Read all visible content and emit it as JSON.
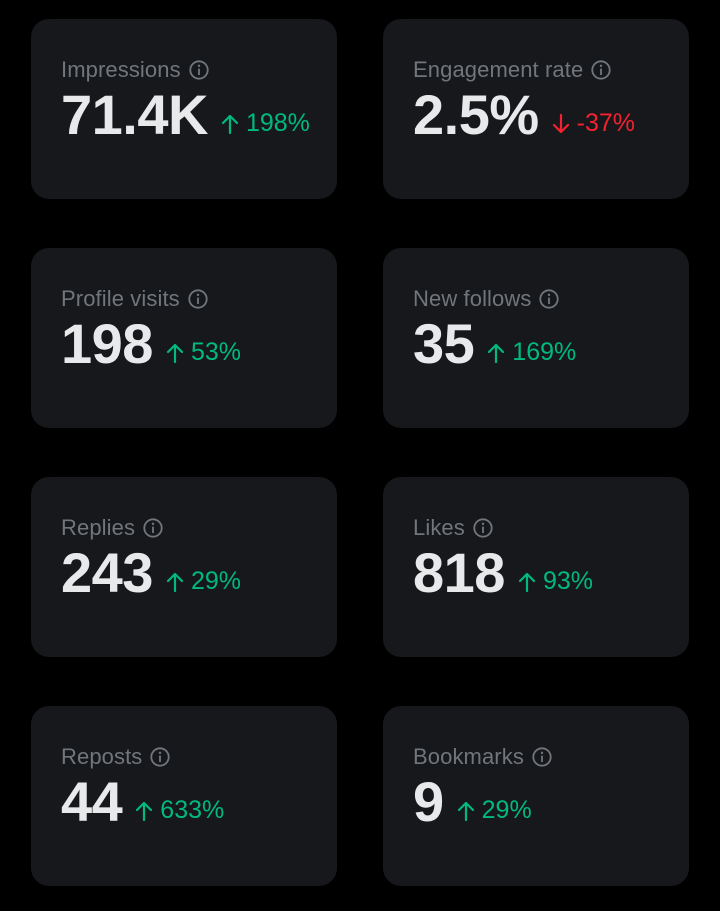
{
  "colors": {
    "background": "#000000",
    "card": "#16181c",
    "label": "#71767b",
    "value": "#e7e9ea",
    "positive": "#00ba7c",
    "negative": "#f4212e"
  },
  "metrics": [
    {
      "label": "Impressions",
      "value": "71.4K",
      "change": "198%",
      "direction": "up"
    },
    {
      "label": "Engagement rate",
      "value": "2.5%",
      "change": "-37%",
      "direction": "down"
    },
    {
      "label": "Profile visits",
      "value": "198",
      "change": "53%",
      "direction": "up"
    },
    {
      "label": "New follows",
      "value": "35",
      "change": "169%",
      "direction": "up"
    },
    {
      "label": "Replies",
      "value": "243",
      "change": "29%",
      "direction": "up"
    },
    {
      "label": "Likes",
      "value": "818",
      "change": "93%",
      "direction": "up"
    },
    {
      "label": "Reposts",
      "value": "44",
      "change": "633%",
      "direction": "up"
    },
    {
      "label": "Bookmarks",
      "value": "9",
      "change": "29%",
      "direction": "up"
    }
  ]
}
